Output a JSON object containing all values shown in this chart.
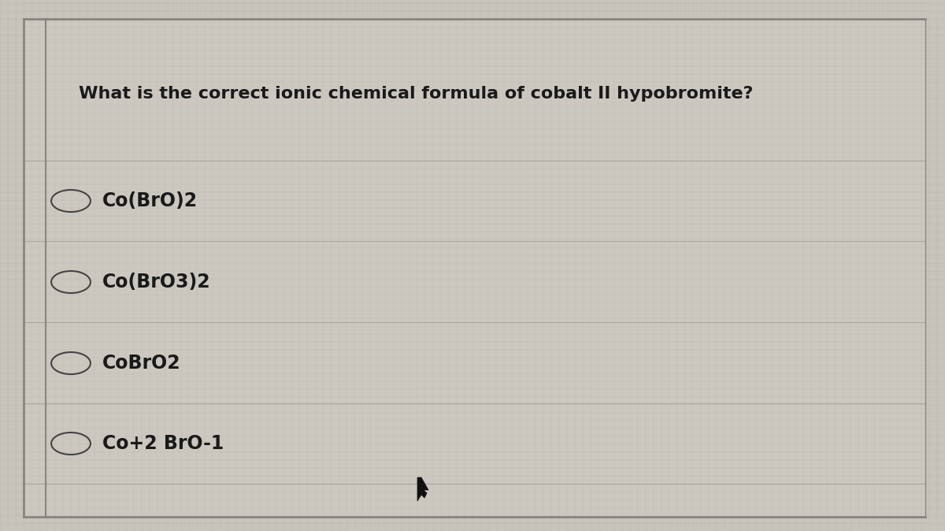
{
  "question": "What is the correct ionic chemical formula of cobalt II hypobromite?",
  "options": [
    "Co(BrO)2",
    "Co(BrO3)2",
    "CoBrO2",
    "Co+2 BrO-1"
  ],
  "bg_color": "#c8c4bc",
  "panel_color": "#ccc8c0",
  "text_color": "#1a1a1a",
  "question_fontsize": 16,
  "option_fontsize": 17,
  "line_color": "#aaa69e",
  "circle_color": "#444444",
  "grid_color": "#b8b4ac",
  "left_bar_color": "#888480",
  "top_bar_color": "#888480"
}
